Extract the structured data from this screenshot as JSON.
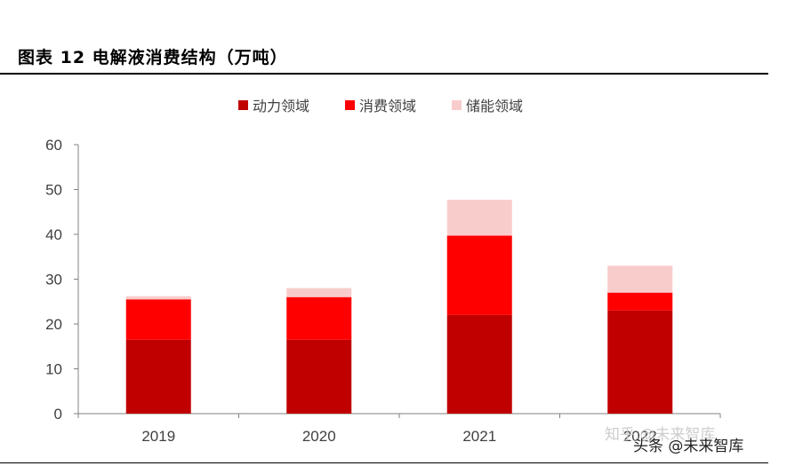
{
  "figure_title": "图表 12  电解液消费结构（万吨）",
  "watermarks": [
    "知乎 @未来智库",
    "头条 @未来智库"
  ],
  "chart_data": {
    "type": "bar",
    "stacked": true,
    "title": "",
    "xlabel": "",
    "ylabel": "",
    "categories": [
      "2019",
      "2020",
      "2021",
      "2022"
    ],
    "ylim": [
      0,
      60
    ],
    "yticks": [
      0,
      10,
      20,
      30,
      40,
      50,
      60
    ],
    "grid": false,
    "legend_position": "top",
    "series": [
      {
        "name": "动力领域",
        "color": "#C00000",
        "values": [
          16.5,
          16.5,
          22,
          23
        ]
      },
      {
        "name": "消费领域",
        "color": "#FF0000",
        "values": [
          9,
          9.5,
          17.7,
          4
        ]
      },
      {
        "name": "储能领域",
        "color": "#F9CCCC",
        "values": [
          0.7,
          2,
          8,
          6
        ]
      }
    ]
  }
}
